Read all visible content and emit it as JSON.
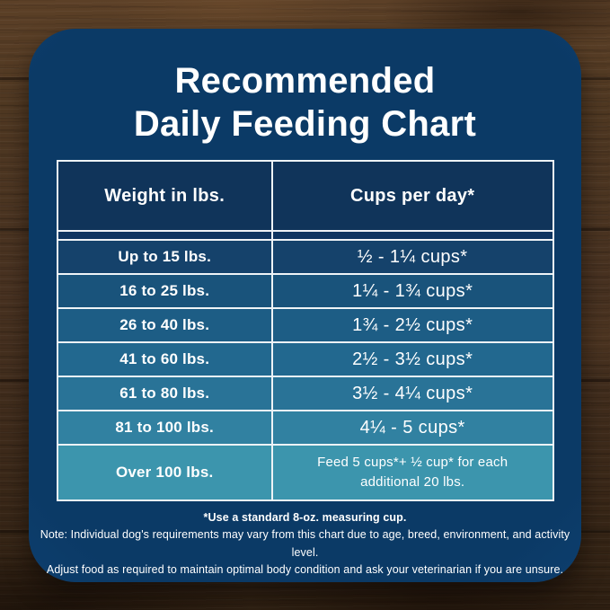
{
  "title": {
    "line1": "Recommended",
    "line2": "Daily Feeding Chart"
  },
  "table": {
    "header_bg": "#10345a",
    "spacer_bg": "#0e3560",
    "border_color": "#eef3f6",
    "headers": [
      "Weight in lbs.",
      "Cups per day*"
    ],
    "rows": [
      {
        "weight": "Up to 15 lbs.",
        "cups": "½ - 1¼ cups*",
        "color": "#15426b"
      },
      {
        "weight": "16 to 25 lbs.",
        "cups": "1¼ - 1¾ cups*",
        "color": "#19537b"
      },
      {
        "weight": "26 to 40 lbs.",
        "cups": "1¾ - 2½ cups*",
        "color": "#1d5d85"
      },
      {
        "weight": "41 to 60 lbs.",
        "cups": "2½ - 3½ cups*",
        "color": "#22688f"
      },
      {
        "weight": "61 to 80 lbs.",
        "cups": "3½ - 4¼ cups*",
        "color": "#297397"
      },
      {
        "weight": "81 to 100 lbs.",
        "cups": "4¼ - 5 cups*",
        "color": "#3181a1"
      },
      {
        "weight": "Over 100 lbs.",
        "cups": "Feed 5 cups*+ ½ cup* for each additional 20 lbs.",
        "color": "#3c95ad"
      }
    ]
  },
  "notes": {
    "measuring_cup": "*Use a standard 8-oz. measuring cup.",
    "line1": "Note: Individual dog's requirements may vary from this chart due to age, breed, environment, and activity level.",
    "line2": "Adjust food as required to maintain optimal body condition and ask your veterinarian if you are unsure."
  },
  "colors": {
    "card_bg": "#0b3a66",
    "card_edge": "#1c538f",
    "text": "#ffffff",
    "wood_base": "#4a3420"
  },
  "chart_data": {
    "type": "table",
    "title": "Recommended Daily Feeding Chart",
    "columns": [
      "Weight in lbs.",
      "Cups per day*"
    ],
    "rows": [
      [
        "Up to 15 lbs.",
        "½ - 1¼ cups*"
      ],
      [
        "16 to 25 lbs.",
        "1¼ - 1¾ cups*"
      ],
      [
        "26 to 40 lbs.",
        "1¾ - 2½ cups*"
      ],
      [
        "41 to 60 lbs.",
        "2½ - 3½ cups*"
      ],
      [
        "61 to 80 lbs.",
        "3½ - 4¼ cups*"
      ],
      [
        "81 to 100 lbs.",
        "4¼ - 5 cups*"
      ],
      [
        "Over 100 lbs.",
        "Feed 5 cups*+ ½ cup* for each additional 20 lbs."
      ]
    ],
    "footnotes": [
      "*Use a standard 8-oz. measuring cup.",
      "Note: Individual dog's requirements may vary from this chart due to age, breed, environment, and activity level.",
      "Adjust food as required to maintain optimal body condition and ask your veterinarian if you are unsure."
    ]
  }
}
